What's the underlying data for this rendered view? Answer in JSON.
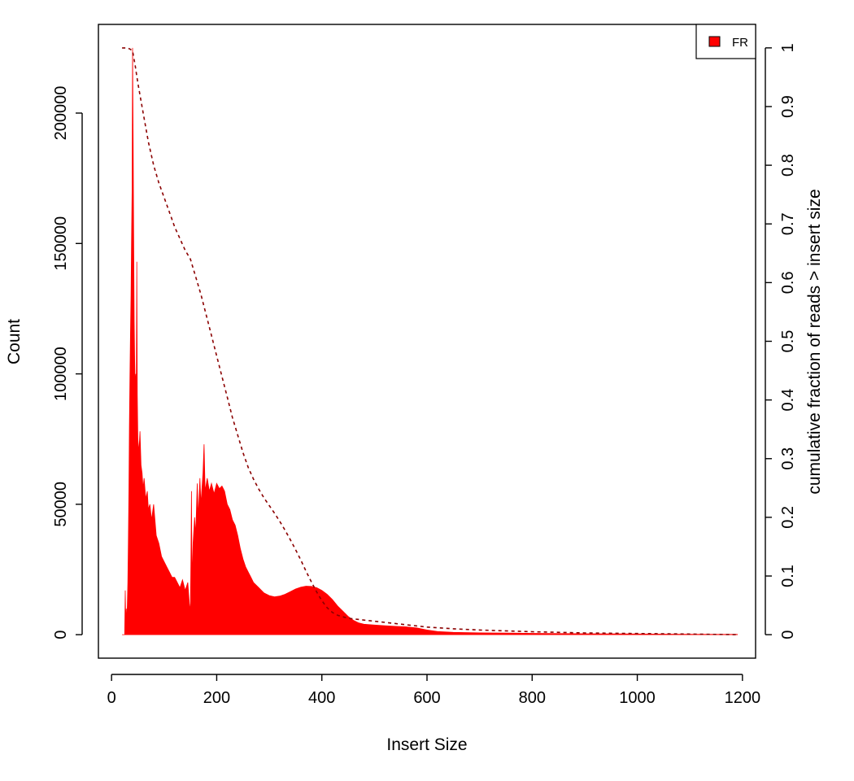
{
  "chart_data": {
    "type": "area",
    "xlabel": "Insert Size",
    "ylabel": "Count",
    "y2label": "cumulative fraction of reads > insert size",
    "xlim": [
      -25,
      1225
    ],
    "ylim": [
      -9000,
      234000
    ],
    "y2lim": [
      -0.04,
      1.04
    ],
    "x_ticks": [
      0,
      200,
      400,
      600,
      800,
      1000,
      1200
    ],
    "x_tick_labels": [
      "0",
      "200",
      "400",
      "600",
      "800",
      "1000",
      "1200"
    ],
    "y_ticks": [
      0,
      50000,
      100000,
      150000,
      200000
    ],
    "y_tick_labels": [
      "0",
      "50000",
      "100000",
      "150000",
      "200000"
    ],
    "y2_ticks": [
      0,
      0.1,
      0.2,
      0.3,
      0.4,
      0.5,
      0.6,
      0.7,
      0.8,
      0.9,
      1
    ],
    "y2_tick_labels": [
      "0",
      "0.1",
      "0.2",
      "0.3",
      "0.4",
      "0.5",
      "0.6",
      "0.7",
      "0.8",
      "0.9",
      "1"
    ],
    "grid": false,
    "legend": {
      "position": "top-right",
      "entries": [
        {
          "label": "FR",
          "color": "#ff0000"
        }
      ]
    },
    "series": [
      {
        "name": "FR",
        "kind": "histogram",
        "color": "#ff0000",
        "points": [
          [
            20,
            0
          ],
          [
            25,
            0
          ],
          [
            26,
            17000
          ],
          [
            27,
            5000
          ],
          [
            28,
            10000
          ],
          [
            29,
            4000
          ],
          [
            30,
            12000
          ],
          [
            31,
            20000
          ],
          [
            32,
            35000
          ],
          [
            33,
            55000
          ],
          [
            34,
            80000
          ],
          [
            35,
            100000
          ],
          [
            36,
            115000
          ],
          [
            37,
            130000
          ],
          [
            38,
            150000
          ],
          [
            39,
            170000
          ],
          [
            40,
            225000
          ],
          [
            41,
            190000
          ],
          [
            42,
            155000
          ],
          [
            43,
            120000
          ],
          [
            44,
            105000
          ],
          [
            45,
            95000
          ],
          [
            46,
            100000
          ],
          [
            47,
            88000
          ],
          [
            48,
            143000
          ],
          [
            49,
            92000
          ],
          [
            50,
            75000
          ],
          [
            52,
            70000
          ],
          [
            54,
            78000
          ],
          [
            56,
            65000
          ],
          [
            58,
            62000
          ],
          [
            60,
            56000
          ],
          [
            62,
            60000
          ],
          [
            65,
            52000
          ],
          [
            68,
            55000
          ],
          [
            70,
            48000
          ],
          [
            73,
            50000
          ],
          [
            76,
            44000
          ],
          [
            80,
            50000
          ],
          [
            85,
            38000
          ],
          [
            90,
            35000
          ],
          [
            95,
            30000
          ],
          [
            100,
            28000
          ],
          [
            105,
            26000
          ],
          [
            110,
            24000
          ],
          [
            115,
            22000
          ],
          [
            120,
            22000
          ],
          [
            125,
            20000
          ],
          [
            130,
            18000
          ],
          [
            135,
            21000
          ],
          [
            140,
            17000
          ],
          [
            145,
            20000
          ],
          [
            148,
            12000
          ],
          [
            150,
            9000
          ],
          [
            151,
            30000
          ],
          [
            152,
            55000
          ],
          [
            153,
            20000
          ],
          [
            155,
            35000
          ],
          [
            158,
            45000
          ],
          [
            160,
            38000
          ],
          [
            163,
            58000
          ],
          [
            165,
            45000
          ],
          [
            168,
            60000
          ],
          [
            170,
            50000
          ],
          [
            174,
            62000
          ],
          [
            176,
            73000
          ],
          [
            178,
            55000
          ],
          [
            182,
            60000
          ],
          [
            186,
            55000
          ],
          [
            190,
            58000
          ],
          [
            195,
            54000
          ],
          [
            200,
            58000
          ],
          [
            205,
            56000
          ],
          [
            210,
            57000
          ],
          [
            215,
            55000
          ],
          [
            220,
            50000
          ],
          [
            225,
            48000
          ],
          [
            230,
            44000
          ],
          [
            235,
            42000
          ],
          [
            240,
            38000
          ],
          [
            245,
            33000
          ],
          [
            250,
            29000
          ],
          [
            255,
            26000
          ],
          [
            260,
            24000
          ],
          [
            265,
            22000
          ],
          [
            270,
            20000
          ],
          [
            280,
            18000
          ],
          [
            290,
            16000
          ],
          [
            300,
            15000
          ],
          [
            310,
            14500
          ],
          [
            320,
            14800
          ],
          [
            330,
            15500
          ],
          [
            340,
            16500
          ],
          [
            350,
            17500
          ],
          [
            360,
            18200
          ],
          [
            370,
            18600
          ],
          [
            380,
            18500
          ],
          [
            390,
            18000
          ],
          [
            400,
            17000
          ],
          [
            410,
            15500
          ],
          [
            420,
            13500
          ],
          [
            430,
            11000
          ],
          [
            440,
            9000
          ],
          [
            450,
            7000
          ],
          [
            460,
            5500
          ],
          [
            470,
            4500
          ],
          [
            480,
            4000
          ],
          [
            500,
            3700
          ],
          [
            520,
            3400
          ],
          [
            540,
            3200
          ],
          [
            560,
            3000
          ],
          [
            580,
            2600
          ],
          [
            600,
            1800
          ],
          [
            620,
            1200
          ],
          [
            650,
            900
          ],
          [
            700,
            700
          ],
          [
            800,
            500
          ],
          [
            900,
            350
          ],
          [
            1000,
            250
          ],
          [
            1100,
            150
          ],
          [
            1190,
            100
          ],
          [
            1191,
            0
          ]
        ]
      },
      {
        "name": "",
        "kind": "cumulative",
        "axis": "right",
        "color": "#8b0000",
        "dash": "dashed",
        "points": [
          [
            20,
            1
          ],
          [
            30,
            1
          ],
          [
            35,
            0.998
          ],
          [
            40,
            0.995
          ],
          [
            45,
            0.97
          ],
          [
            50,
            0.94
          ],
          [
            60,
            0.89
          ],
          [
            70,
            0.84
          ],
          [
            80,
            0.8
          ],
          [
            90,
            0.77
          ],
          [
            100,
            0.745
          ],
          [
            110,
            0.72
          ],
          [
            120,
            0.695
          ],
          [
            130,
            0.675
          ],
          [
            140,
            0.655
          ],
          [
            150,
            0.64
          ],
          [
            160,
            0.61
          ],
          [
            170,
            0.58
          ],
          [
            180,
            0.545
          ],
          [
            190,
            0.51
          ],
          [
            200,
            0.475
          ],
          [
            210,
            0.44
          ],
          [
            220,
            0.405
          ],
          [
            230,
            0.37
          ],
          [
            240,
            0.34
          ],
          [
            250,
            0.31
          ],
          [
            260,
            0.285
          ],
          [
            270,
            0.265
          ],
          [
            280,
            0.248
          ],
          [
            290,
            0.233
          ],
          [
            300,
            0.22
          ],
          [
            310,
            0.207
          ],
          [
            320,
            0.193
          ],
          [
            330,
            0.178
          ],
          [
            340,
            0.162
          ],
          [
            350,
            0.145
          ],
          [
            360,
            0.127
          ],
          [
            370,
            0.108
          ],
          [
            380,
            0.09
          ],
          [
            390,
            0.073
          ],
          [
            400,
            0.058
          ],
          [
            410,
            0.046
          ],
          [
            420,
            0.038
          ],
          [
            430,
            0.033
          ],
          [
            450,
            0.028
          ],
          [
            500,
            0.023
          ],
          [
            550,
            0.018
          ],
          [
            600,
            0.013
          ],
          [
            650,
            0.01
          ],
          [
            700,
            0.008
          ],
          [
            800,
            0.005
          ],
          [
            900,
            0.003
          ],
          [
            1000,
            0.002
          ],
          [
            1100,
            0.001
          ],
          [
            1190,
            0
          ]
        ]
      }
    ]
  }
}
